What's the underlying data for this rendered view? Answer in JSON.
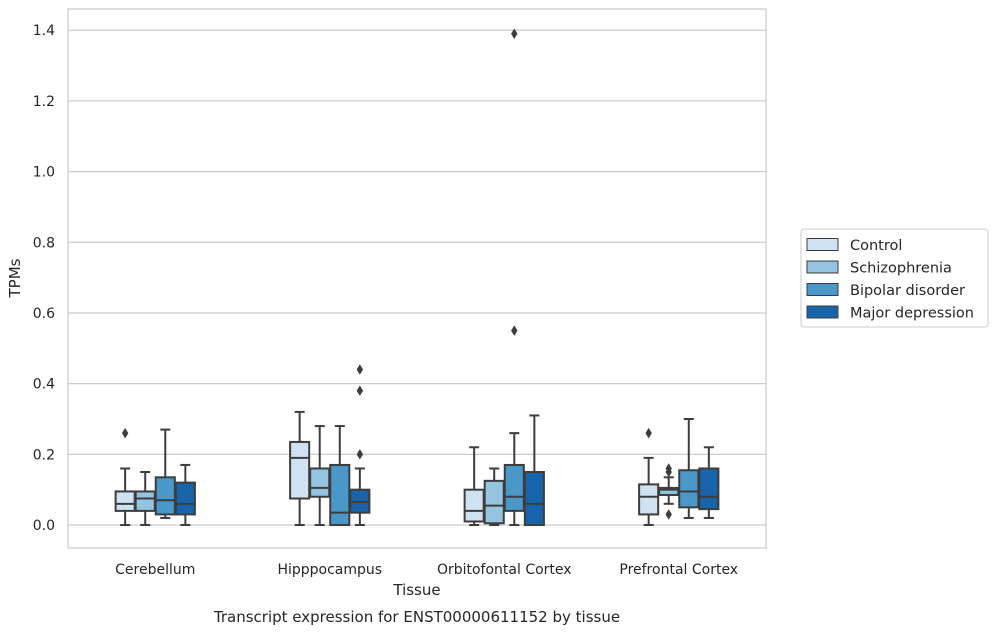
{
  "chart_data": {
    "type": "box",
    "title": "",
    "caption": "Transcript expression for ENST00000611152 by tissue",
    "xlabel": "Tissue",
    "ylabel": "TPMs",
    "ylim": [
      -0.065,
      1.46
    ],
    "yticks": [
      "0.0",
      "0.2",
      "0.4",
      "0.6",
      "0.8",
      "1.0",
      "1.2",
      "1.4"
    ],
    "ytick_values": [
      0.0,
      0.2,
      0.4,
      0.6,
      0.8,
      1.0,
      1.2,
      1.4
    ],
    "grid": "horizontal",
    "legend_placement": "right-center",
    "categories": [
      "Cerebellum",
      "Hipppocampus",
      "Orbitofontal Cortex",
      "Prefrontal Cortex"
    ],
    "series": [
      {
        "name": "Control",
        "color": "#d0e1f2",
        "boxes": [
          {
            "whisker_low": 0.0,
            "q1": 0.04,
            "median": 0.06,
            "q3": 0.095,
            "whisker_high": 0.16,
            "outliers": [
              0.26
            ]
          },
          {
            "whisker_low": 0.0,
            "q1": 0.075,
            "median": 0.19,
            "q3": 0.235,
            "whisker_high": 0.32,
            "outliers": []
          },
          {
            "whisker_low": 0.0,
            "q1": 0.01,
            "median": 0.04,
            "q3": 0.1,
            "whisker_high": 0.22,
            "outliers": []
          },
          {
            "whisker_low": 0.0,
            "q1": 0.03,
            "median": 0.08,
            "q3": 0.115,
            "whisker_high": 0.19,
            "outliers": [
              0.26
            ]
          }
        ]
      },
      {
        "name": "Schizophrenia",
        "color": "#94c4df",
        "boxes": [
          {
            "whisker_low": 0.0,
            "q1": 0.04,
            "median": 0.075,
            "q3": 0.095,
            "whisker_high": 0.15,
            "outliers": []
          },
          {
            "whisker_low": 0.0,
            "q1": 0.08,
            "median": 0.105,
            "q3": 0.16,
            "whisker_high": 0.28,
            "outliers": []
          },
          {
            "whisker_low": 0.0,
            "q1": 0.005,
            "median": 0.055,
            "q3": 0.125,
            "whisker_high": 0.16,
            "outliers": []
          },
          {
            "whisker_low": 0.06,
            "q1": 0.085,
            "median": 0.1,
            "q3": 0.105,
            "whisker_high": 0.135,
            "outliers": [
              0.16,
              0.15,
              0.03
            ]
          }
        ]
      },
      {
        "name": "Bipolar disorder",
        "color": "#4a98c9",
        "boxes": [
          {
            "whisker_low": 0.02,
            "q1": 0.03,
            "median": 0.07,
            "q3": 0.135,
            "whisker_high": 0.27,
            "outliers": []
          },
          {
            "whisker_low": 0.0,
            "q1": 0.0,
            "median": 0.035,
            "q3": 0.17,
            "whisker_high": 0.28,
            "outliers": []
          },
          {
            "whisker_low": 0.0,
            "q1": 0.04,
            "median": 0.08,
            "q3": 0.17,
            "whisker_high": 0.26,
            "outliers": [
              0.55,
              1.39
            ]
          },
          {
            "whisker_low": 0.02,
            "q1": 0.05,
            "median": 0.095,
            "q3": 0.155,
            "whisker_high": 0.3,
            "outliers": []
          }
        ]
      },
      {
        "name": "Major depression",
        "color": "#1764ab",
        "boxes": [
          {
            "whisker_low": 0.0,
            "q1": 0.03,
            "median": 0.06,
            "q3": 0.12,
            "whisker_high": 0.17,
            "outliers": []
          },
          {
            "whisker_low": 0.0,
            "q1": 0.035,
            "median": 0.065,
            "q3": 0.1,
            "whisker_high": 0.16,
            "outliers": [
              0.44,
              0.38,
              0.2
            ]
          },
          {
            "whisker_low": 0.0,
            "q1": 0.0,
            "median": 0.06,
            "q3": 0.15,
            "whisker_high": 0.31,
            "outliers": []
          },
          {
            "whisker_low": 0.02,
            "q1": 0.045,
            "median": 0.08,
            "q3": 0.16,
            "whisker_high": 0.22,
            "outliers": []
          }
        ]
      }
    ]
  }
}
